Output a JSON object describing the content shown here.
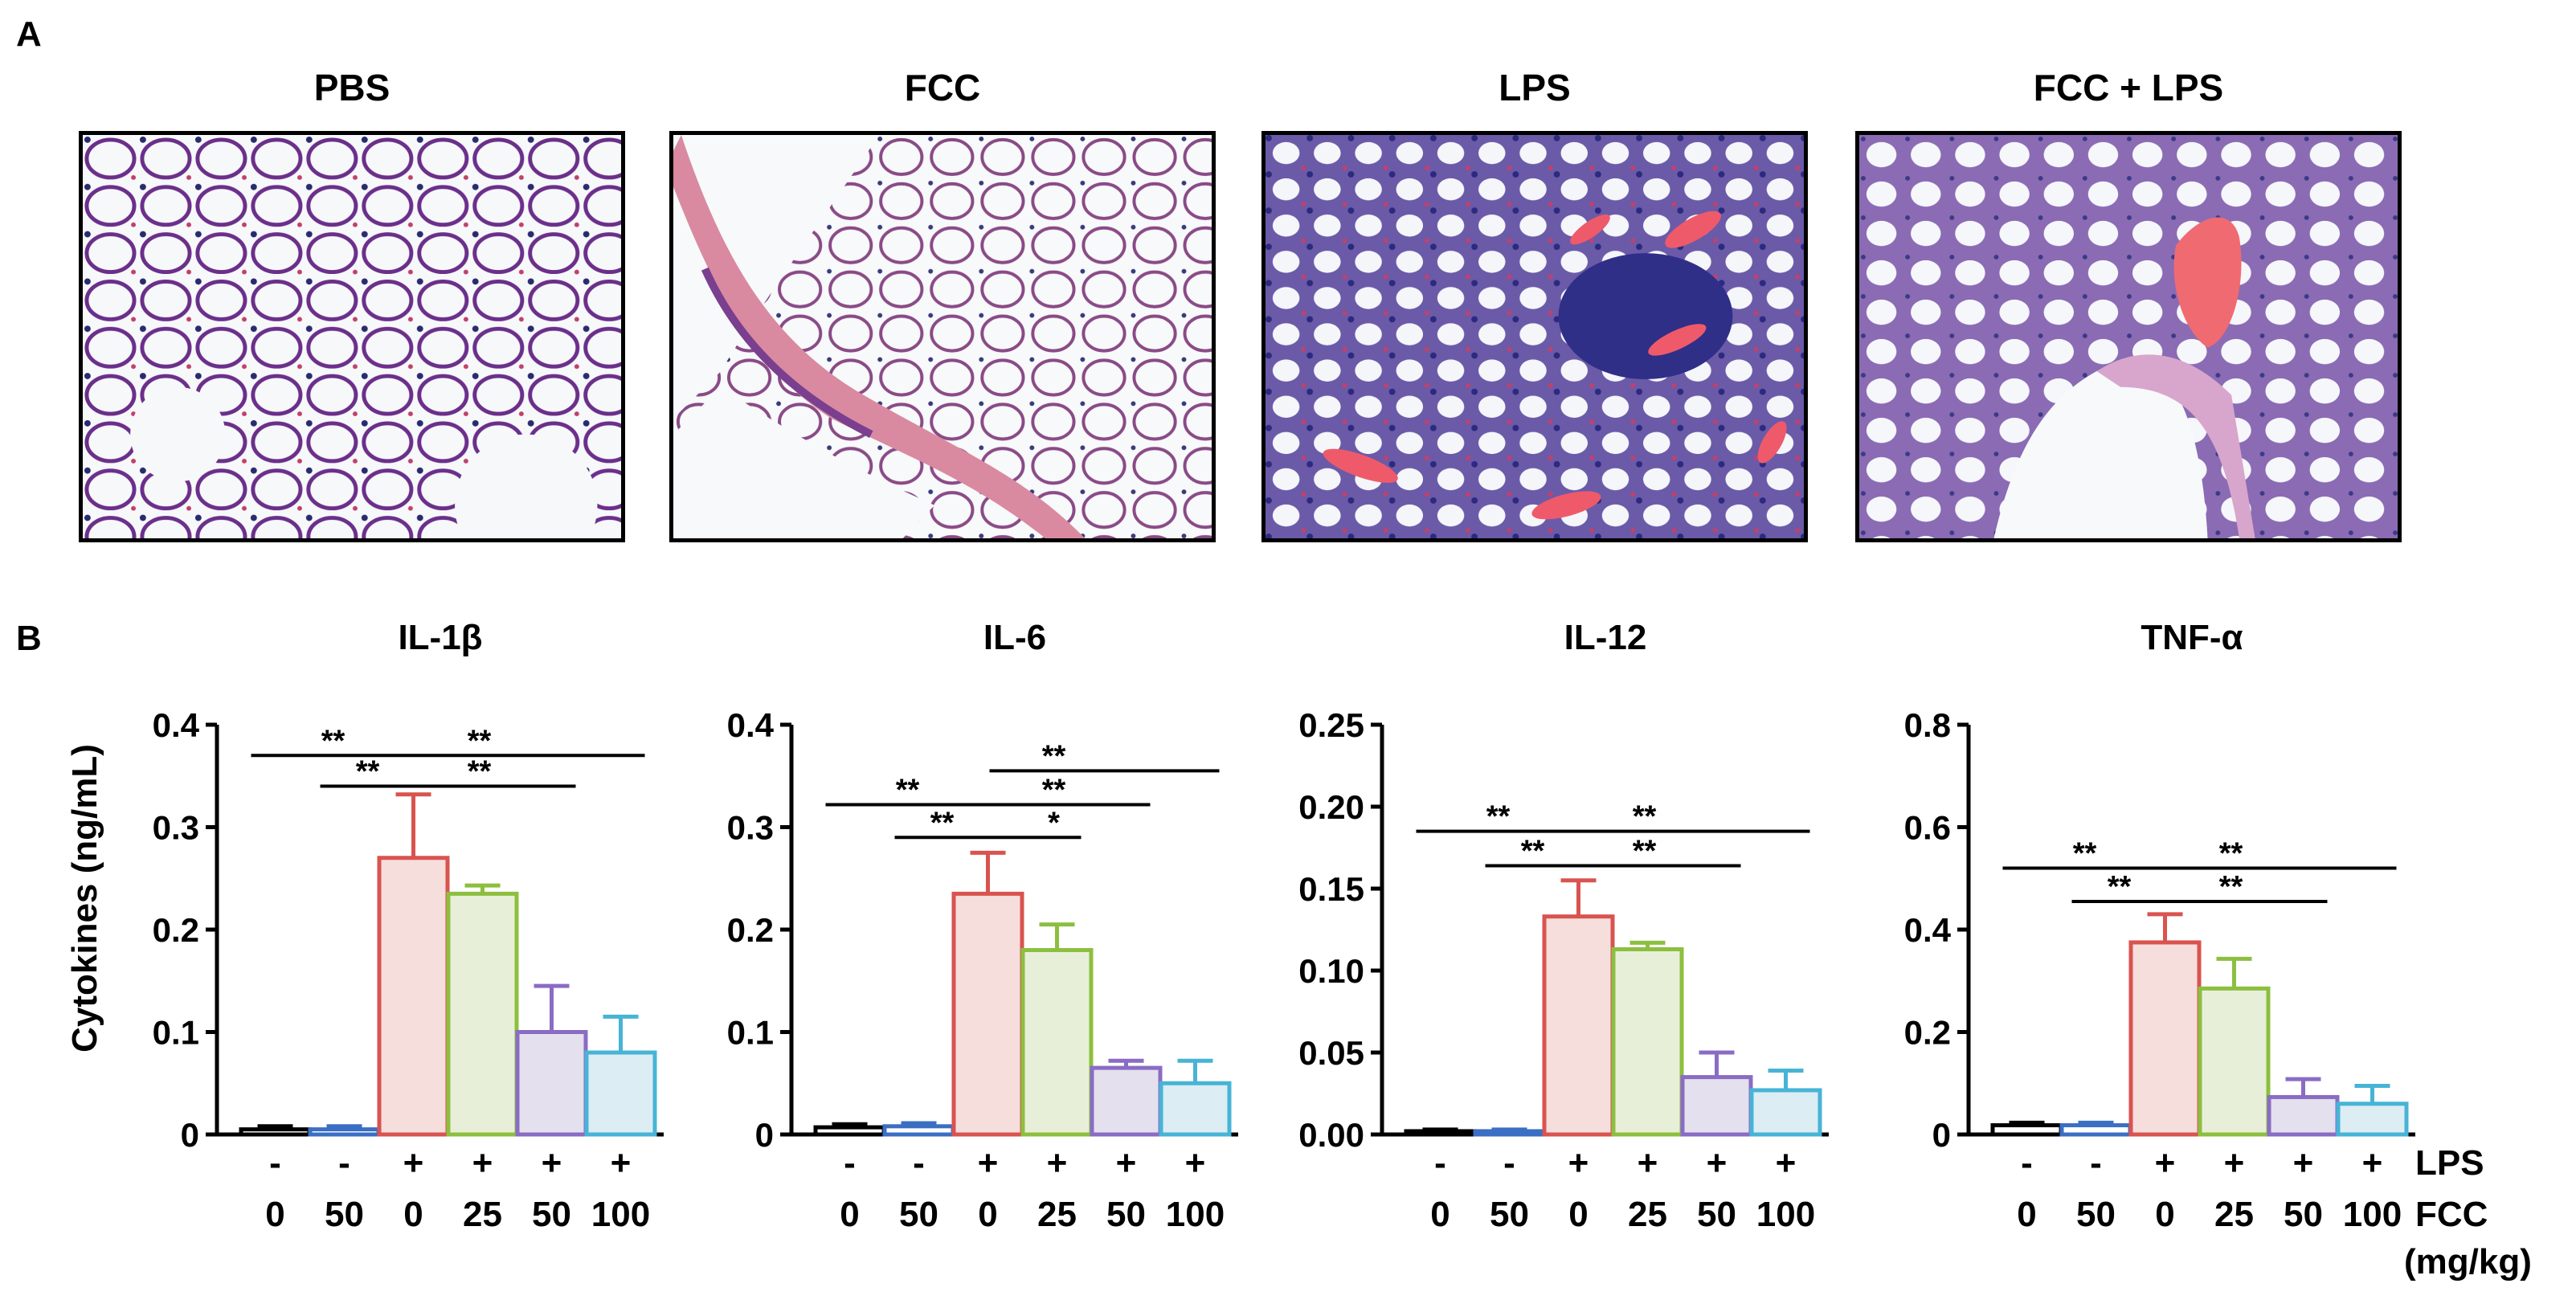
{
  "panel_a_label": "A",
  "panel_b_label": "B",
  "histology": [
    {
      "title": "PBS"
    },
    {
      "title": "FCC"
    },
    {
      "title": "LPS"
    },
    {
      "title": "FCC + LPS"
    }
  ],
  "ylabel": "Cytokines (ng/mL)",
  "lps_row": [
    "-",
    "-",
    "+",
    "+",
    "+",
    "+"
  ],
  "fcc_row": [
    "0",
    "50",
    "0",
    "25",
    "50",
    "100"
  ],
  "lps_label": "LPS",
  "fcc_label": "FCC",
  "unit_label": "(mg/kg)",
  "colors": {
    "edges": [
      "#000000",
      "#3a6fc4",
      "#d9534f",
      "#8cbf3f",
      "#8a6cc4",
      "#47b4d6"
    ],
    "fills": [
      "#ffffff",
      "#ffffff",
      "#f6dedd",
      "#e8efd9",
      "#e4e0ee",
      "#dcedf4"
    ]
  },
  "chart_data": [
    {
      "type": "bar",
      "title": "IL-1β",
      "categories": [
        "- / 0",
        "- / 50",
        "+ / 0",
        "+ / 25",
        "+ / 50",
        "+ / 100"
      ],
      "values": [
        0.005,
        0.005,
        0.27,
        0.235,
        0.1,
        0.08
      ],
      "errors": [
        0.003,
        0.003,
        0.062,
        0.008,
        0.045,
        0.035
      ],
      "ylim": [
        0,
        0.4
      ],
      "yticks": [
        "0",
        "0.1",
        "0.2",
        "0.3",
        "0.4"
      ],
      "ytick_values": [
        0,
        0.1,
        0.2,
        0.3,
        0.4
      ],
      "significance": [
        {
          "from": 0,
          "to": 2,
          "y": 0.37,
          "label": "**"
        },
        {
          "from": 1,
          "to": 2,
          "y": 0.34,
          "label": "**"
        },
        {
          "from": 2,
          "to": 5,
          "y": 0.37,
          "label": "**"
        },
        {
          "from": 2,
          "to": 4,
          "y": 0.34,
          "label": "**"
        }
      ]
    },
    {
      "type": "bar",
      "title": "IL-6",
      "categories": [
        "- / 0",
        "- / 50",
        "+ / 0",
        "+ / 25",
        "+ / 50",
        "+ / 100"
      ],
      "values": [
        0.007,
        0.008,
        0.235,
        0.18,
        0.065,
        0.05
      ],
      "errors": [
        0.003,
        0.003,
        0.04,
        0.025,
        0.007,
        0.022
      ],
      "ylim": [
        0,
        0.4
      ],
      "yticks": [
        "0",
        "0.1",
        "0.2",
        "0.3",
        "0.4"
      ],
      "ytick_values": [
        0,
        0.1,
        0.2,
        0.3,
        0.4
      ],
      "significance": [
        {
          "from": 0,
          "to": 2,
          "y": 0.322,
          "label": "**"
        },
        {
          "from": 1,
          "to": 2,
          "y": 0.29,
          "label": "**"
        },
        {
          "from": 2,
          "to": 5,
          "y": 0.355,
          "label": "**"
        },
        {
          "from": 2,
          "to": 4,
          "y": 0.322,
          "label": "**"
        },
        {
          "from": 2,
          "to": 3,
          "y": 0.29,
          "label": "*"
        }
      ]
    },
    {
      "type": "bar",
      "title": "IL-12",
      "categories": [
        "- / 0",
        "- / 50",
        "+ / 0",
        "+ / 25",
        "+ / 50",
        "+ / 100"
      ],
      "values": [
        0.002,
        0.002,
        0.133,
        0.113,
        0.035,
        0.027
      ],
      "errors": [
        0.001,
        0.001,
        0.022,
        0.004,
        0.015,
        0.012
      ],
      "ylim": [
        0,
        0.25
      ],
      "yticks": [
        "0.00",
        "0.05",
        "0.10",
        "0.15",
        "0.20",
        "0.25"
      ],
      "ytick_values": [
        0,
        0.05,
        0.1,
        0.15,
        0.2,
        0.25
      ],
      "significance": [
        {
          "from": 0,
          "to": 2,
          "y": 0.185,
          "label": "**"
        },
        {
          "from": 1,
          "to": 2,
          "y": 0.164,
          "label": "**"
        },
        {
          "from": 2,
          "to": 5,
          "y": 0.185,
          "label": "**"
        },
        {
          "from": 2,
          "to": 4,
          "y": 0.164,
          "label": "**"
        }
      ]
    },
    {
      "type": "bar",
      "title": "TNF-α",
      "categories": [
        "- / 0",
        "- / 50",
        "+ / 0",
        "+ / 25",
        "+ / 50",
        "+ / 100"
      ],
      "values": [
        0.018,
        0.018,
        0.375,
        0.285,
        0.073,
        0.06
      ],
      "errors": [
        0.005,
        0.005,
        0.055,
        0.058,
        0.035,
        0.035
      ],
      "ylim": [
        0,
        0.8
      ],
      "yticks": [
        "0",
        "0.2",
        "0.4",
        "0.6",
        "0.8"
      ],
      "ytick_values": [
        0,
        0.2,
        0.4,
        0.6,
        0.8
      ],
      "significance": [
        {
          "from": 0,
          "to": 2,
          "y": 0.52,
          "label": "**"
        },
        {
          "from": 1,
          "to": 2,
          "y": 0.455,
          "label": "**"
        },
        {
          "from": 2,
          "to": 5,
          "y": 0.52,
          "label": "**"
        },
        {
          "from": 2,
          "to": 4,
          "y": 0.455,
          "label": "**"
        }
      ]
    }
  ]
}
